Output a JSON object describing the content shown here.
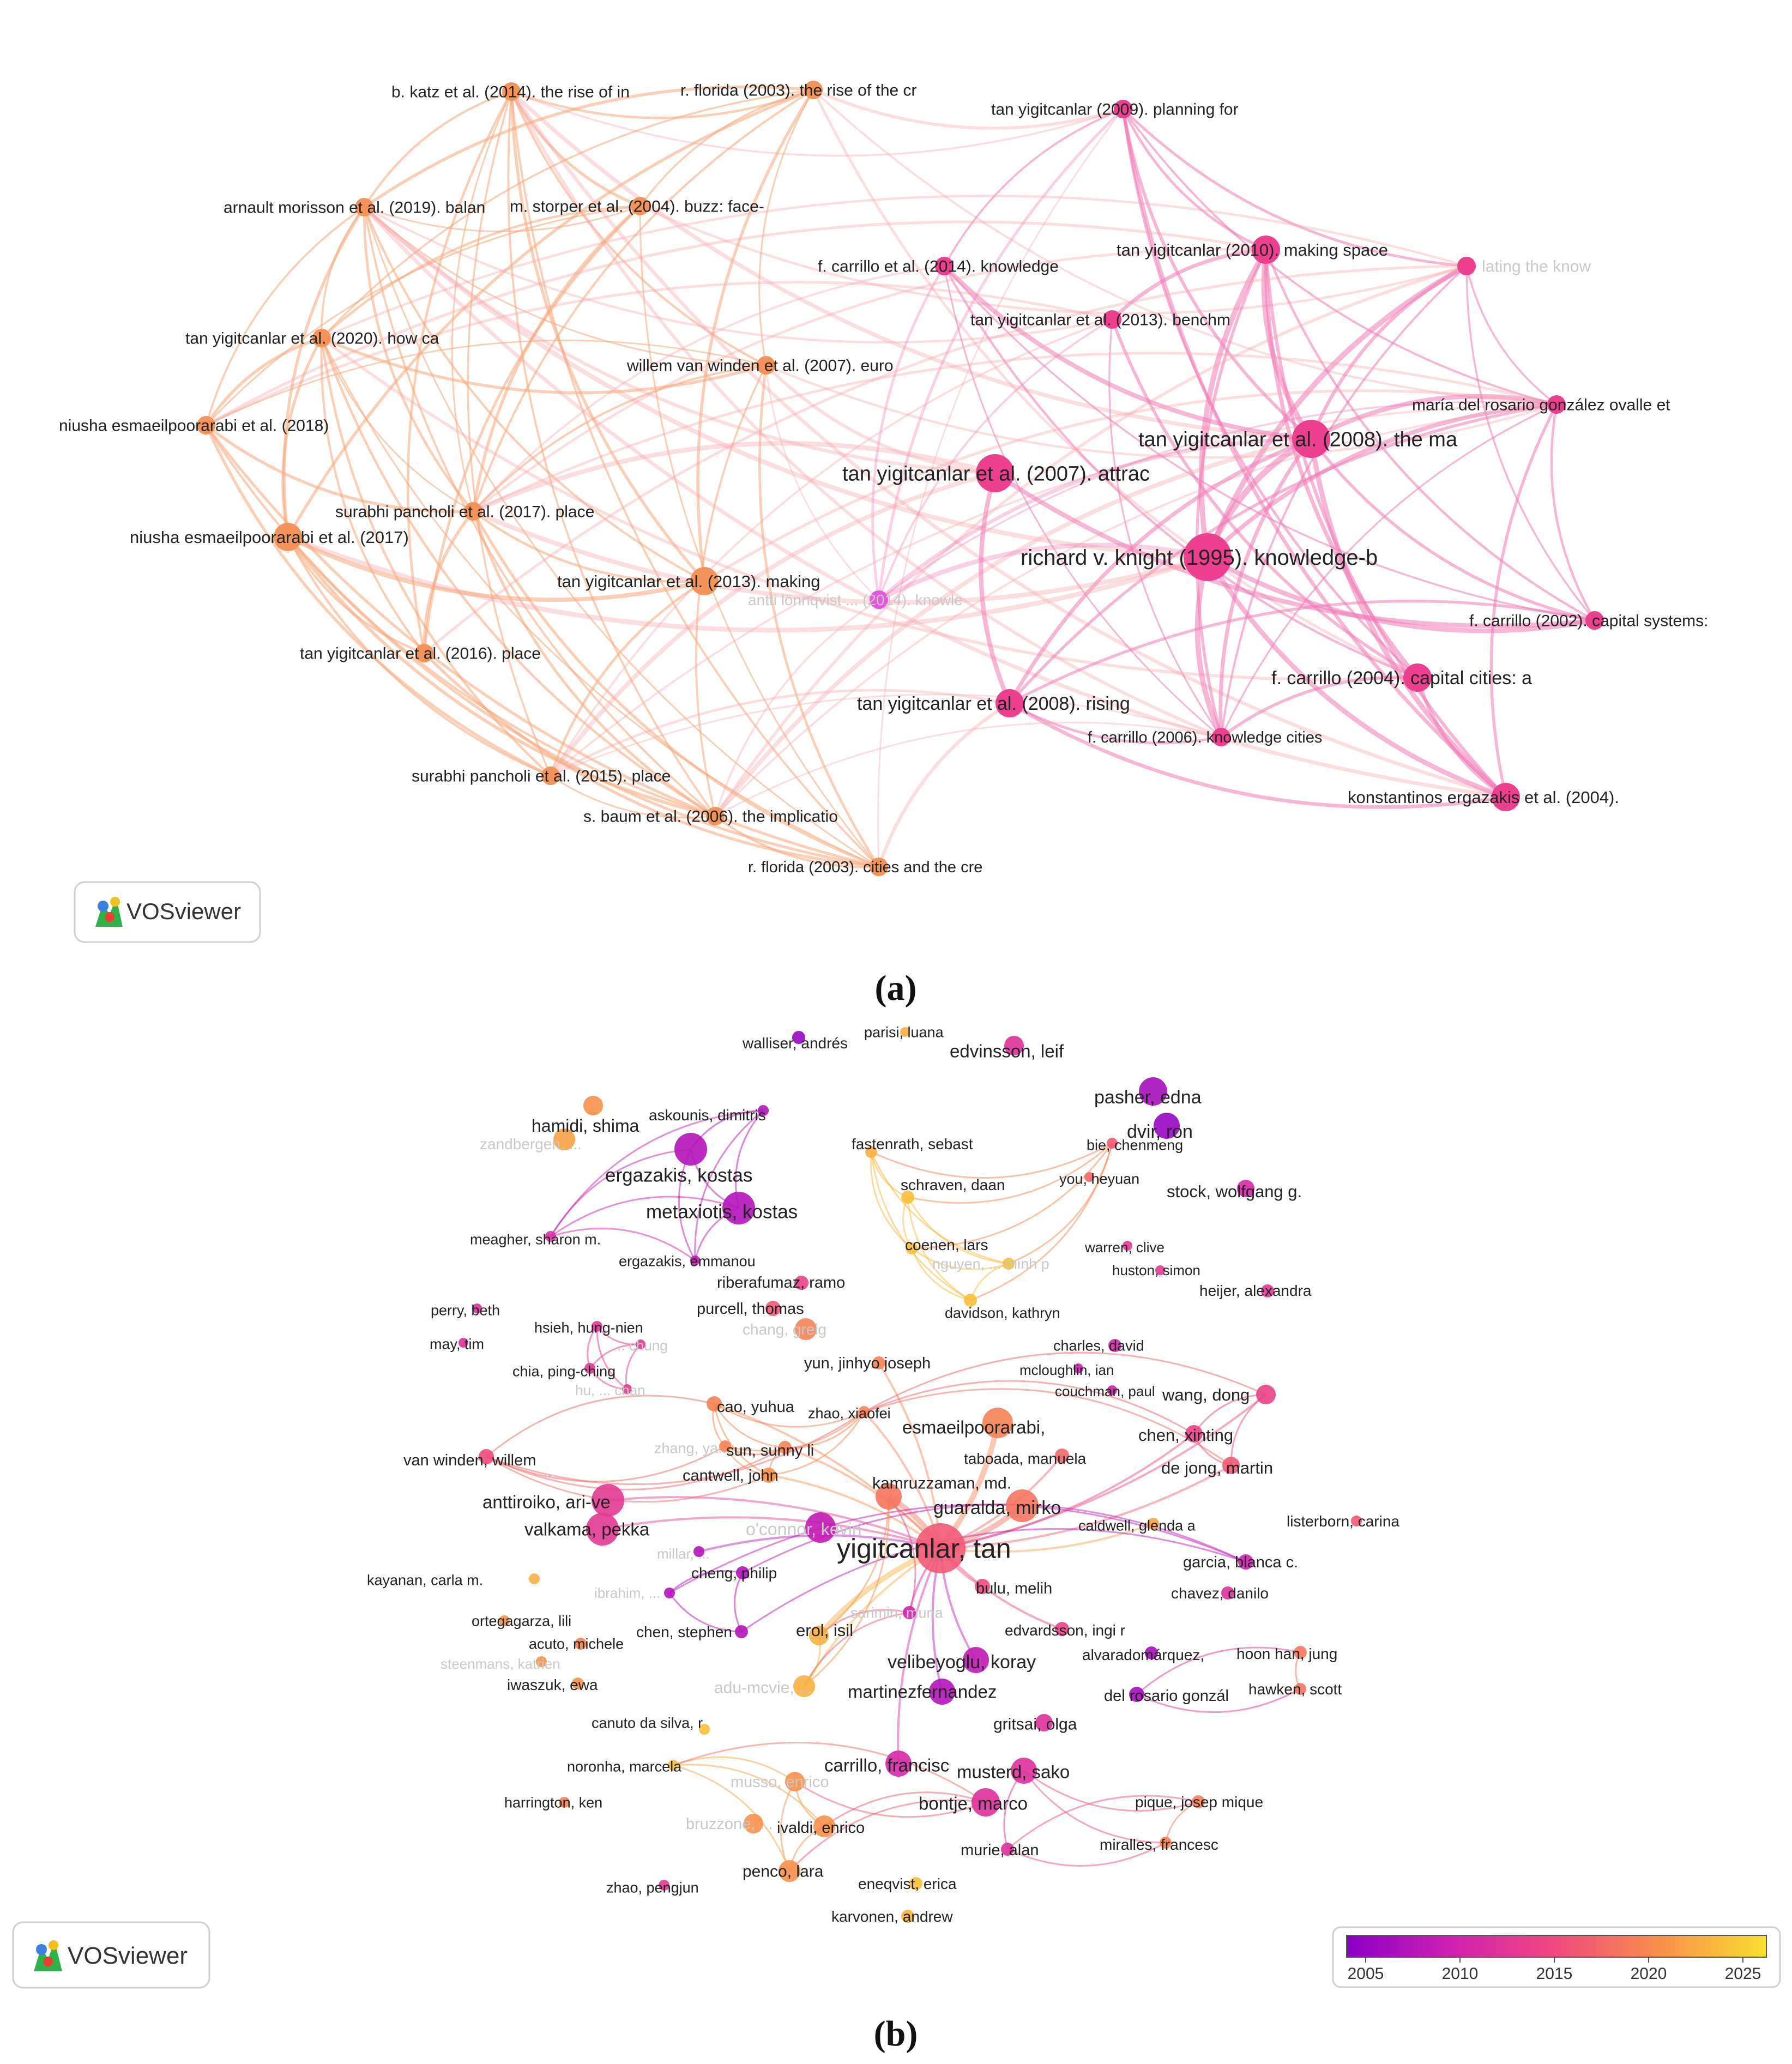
{
  "panel_a": {
    "caption": "(a)",
    "logo_text": "VOSviewer",
    "colors": {
      "cluster_orange": "#f4945a",
      "cluster_pink": "#ec3f8f",
      "cluster_magenta": "#e455e0"
    },
    "nodes": [
      {
        "id": "a1",
        "label": "b. katz et al. (2014). the rise of in",
        "cluster": "orange",
        "weight": 1
      },
      {
        "id": "a2",
        "label": "r. florida (2003). the rise of the cr",
        "cluster": "orange",
        "weight": 1
      },
      {
        "id": "a3",
        "label": "tan yigitcanlar (2009). planning for",
        "cluster": "pink",
        "weight": 1
      },
      {
        "id": "a4",
        "label": "arnault morisson et al. (2019). balan",
        "cluster": "orange",
        "weight": 1
      },
      {
        "id": "a5",
        "label": "m. storper et al. (2004). buzz: face-",
        "cluster": "orange",
        "weight": 1
      },
      {
        "id": "a6",
        "label": "f. carrillo et al. (2014). knowledge",
        "cluster": "pink",
        "weight": 1
      },
      {
        "id": "a7",
        "label": "tan yigitcanlar (2010). making space",
        "cluster": "pink",
        "weight": 2
      },
      {
        "id": "a8",
        "label": "lating the know",
        "cluster": "pink",
        "weight": 1,
        "faint": true
      },
      {
        "id": "a9",
        "label": "tan yigitcanlar et al. (2013). benchm",
        "cluster": "pink",
        "weight": 1
      },
      {
        "id": "a10",
        "label": "tan yigitcanlar et al. (2020). how ca",
        "cluster": "orange",
        "weight": 1
      },
      {
        "id": "a11",
        "label": "willem van winden et al. (2007). euro",
        "cluster": "orange",
        "weight": 1
      },
      {
        "id": "a12",
        "label": "maría del rosario gonzález ovalle et",
        "cluster": "pink",
        "weight": 1
      },
      {
        "id": "a13",
        "label": "niusha esmaeilpoorarabi et al. (2018)",
        "cluster": "orange",
        "weight": 1
      },
      {
        "id": "a14",
        "label": "tan yigitcanlar et al. (2008). the ma",
        "cluster": "pink",
        "weight": 3
      },
      {
        "id": "a15",
        "label": "tan yigitcanlar et al. (2007). attrac",
        "cluster": "pink",
        "weight": 3
      },
      {
        "id": "a16",
        "label": "surabhi pancholi et al. (2017). place",
        "cluster": "orange",
        "weight": 1
      },
      {
        "id": "a17",
        "label": "niusha esmaeilpoorarabi et al. (2017)",
        "cluster": "orange",
        "weight": 2
      },
      {
        "id": "a18",
        "label": "richard v. knight (1995). knowledge-b",
        "cluster": "pink",
        "weight": 4
      },
      {
        "id": "a19",
        "label": "tan yigitcanlar et al. (2013). making",
        "cluster": "orange",
        "weight": 2
      },
      {
        "id": "a20",
        "label": "antti lönnqvist ... (2014). knowle",
        "cluster": "magenta",
        "weight": 1,
        "faint": true
      },
      {
        "id": "a21",
        "label": "f. carrillo (2002). capital systems:",
        "cluster": "pink",
        "weight": 1
      },
      {
        "id": "a22",
        "label": "tan yigitcanlar et al. (2016). place",
        "cluster": "orange",
        "weight": 1
      },
      {
        "id": "a23",
        "label": "f. carrillo (2004). capital cities: a",
        "cluster": "pink",
        "weight": 2
      },
      {
        "id": "a24",
        "label": "tan yigitcanlar et al. (2008). rising",
        "cluster": "pink",
        "weight": 2
      },
      {
        "id": "a25",
        "label": "f. carrillo (2006). knowledge cities",
        "cluster": "pink",
        "weight": 1
      },
      {
        "id": "a26",
        "label": "surabhi pancholi et al. (2015). place",
        "cluster": "orange",
        "weight": 1
      },
      {
        "id": "a27",
        "label": "s. baum et al. (2006). the implicatio",
        "cluster": "orange",
        "weight": 1
      },
      {
        "id": "a28",
        "label": "konstantinos ergazakis et al. (2004).",
        "cluster": "pink",
        "weight": 2
      },
      {
        "id": "a29",
        "label": "r. florida (2003). cities and the cre",
        "cluster": "orange",
        "weight": 1
      }
    ]
  },
  "panel_b": {
    "caption": "(b)",
    "logo_text": "VOSviewer",
    "legend": {
      "ticks": [
        "2005",
        "2010",
        "2015",
        "2020",
        "2025"
      ],
      "colors": [
        "#8a00c8",
        "#d020b0",
        "#f04a7e",
        "#f8904a",
        "#f8e030"
      ]
    },
    "nodes": [
      {
        "label": "walliser, andrés",
        "year": 2006
      },
      {
        "label": "parisi, luana",
        "year": 2022
      },
      {
        "label": "edvinsson, leif",
        "year": 2012
      },
      {
        "label": "pasher, edna",
        "year": 2007
      },
      {
        "label": "dvir, ron",
        "year": 2006
      },
      {
        "label": "askounis, dimitris",
        "year": 2008
      },
      {
        "label": "hamidi, shima",
        "year": 2020
      },
      {
        "label": "zandbergen, ...",
        "year": 2021,
        "faint": true
      },
      {
        "label": "ergazakis, kostas",
        "year": 2008
      },
      {
        "label": "metaxiotis, kostas",
        "year": 2008
      },
      {
        "label": "fastenrath, sebast",
        "year": 2022
      },
      {
        "label": "bie, chenmeng",
        "year": 2016
      },
      {
        "label": "you, heyuan",
        "year": 2017
      },
      {
        "label": "schraven, daan",
        "year": 2023
      },
      {
        "label": "stock, wolfgang g.",
        "year": 2011
      },
      {
        "label": "meagher, sharon m.",
        "year": 2012
      },
      {
        "label": "ergazakis, emmanou",
        "year": 2009
      },
      {
        "label": "coenen, lars",
        "year": 2023
      },
      {
        "label": "warren, clive",
        "year": 2013
      },
      {
        "label": "nguyen, ... minh p",
        "year": 2023,
        "faint": true
      },
      {
        "label": "huston, simon",
        "year": 2013
      },
      {
        "label": "heijer, alexandra",
        "year": 2013
      },
      {
        "label": "ribera​fumaz, ramo",
        "year": 2014
      },
      {
        "label": "perry, beth",
        "year": 2012
      },
      {
        "label": "purcell, thomas",
        "year": 2016
      },
      {
        "label": "davidson, kathryn",
        "year": 2023
      },
      {
        "label": "hsieh, hung-nien",
        "year": 2013
      },
      {
        "label": "... chung",
        "year": 2013,
        "faint": true
      },
      {
        "label": "chang, greig",
        "year": 2019,
        "faint": true
      },
      {
        "label": "may, tim",
        "year": 2012
      },
      {
        "label": "charles, david",
        "year": 2011
      },
      {
        "label": "yun, jinhyo joseph",
        "year": 2019
      },
      {
        "label": "mcloughlin, ian",
        "year": 2010
      },
      {
        "label": "chia, ping-ching",
        "year": 2013
      },
      {
        "label": "hu, ... chan",
        "year": 2013,
        "faint": true
      },
      {
        "label": "couchman, paul",
        "year": 2010
      },
      {
        "label": "wang, dong",
        "year": 2014
      },
      {
        "label": "cao, yuhua",
        "year": 2019
      },
      {
        "label": "zhao, xiaofei",
        "year": 2019
      },
      {
        "label": "esmaeilpoorarabi,",
        "year": 2019
      },
      {
        "label": "chen, xinting",
        "year": 2014
      },
      {
        "label": "van winden, willem",
        "year": 2015
      },
      {
        "label": "zhang, ya...",
        "year": 2019,
        "faint": true
      },
      {
        "label": "sun, sunny li",
        "year": 2019
      },
      {
        "label": "taboada, manuela",
        "year": 2017
      },
      {
        "label": "de jong, martin",
        "year": 2016
      },
      {
        "label": "cantwell, john",
        "year": 2020
      },
      {
        "label": "kamruzzaman, md.",
        "year": 2018
      },
      {
        "label": "anttiroiko, ari-ve",
        "year": 2013
      },
      {
        "label": "guaralda, mirko",
        "year": 2018
      },
      {
        "label": "caldwell, glenda a",
        "year": 2021
      },
      {
        "label": "listerborn, carina",
        "year": 2016
      },
      {
        "label": "valkama, pekka",
        "year": 2013
      },
      {
        "label": "o'connor, kevin",
        "year": 2009,
        "faint": true
      },
      {
        "label": "yigitcanlar, tan",
        "year": 2016
      },
      {
        "label": "millar, ...",
        "year": 2008,
        "faint": true
      },
      {
        "label": "garcia, blanca c.",
        "year": 2010
      },
      {
        "label": "kayanan, carla m.",
        "year": 2022
      },
      {
        "label": "cheng, philip",
        "year": 2008
      },
      {
        "label": "bulu, melih",
        "year": 2015
      },
      {
        "label": "ibrahim, ...",
        "year": 2008,
        "faint": true
      },
      {
        "label": "chavez, danilo",
        "year": 2012
      },
      {
        "label": "sarimin, muna",
        "year": 2010,
        "faint": true
      },
      {
        "label": "ortega​garza, lili",
        "year": 2020
      },
      {
        "label": "edvardsson, ingi r",
        "year": 2014
      },
      {
        "label": "erol, isil",
        "year": 2022
      },
      {
        "label": "chen, stephen",
        "year": 2008
      },
      {
        "label": "acuto, michele",
        "year": 2019
      },
      {
        "label": "velibeyoglu, koray",
        "year": 2009
      },
      {
        "label": "alvarado​márquez,",
        "year": 2007
      },
      {
        "label": "hoon han, jung",
        "year": 2018
      },
      {
        "label": "steenmans, katrien",
        "year": 2020,
        "faint": true
      },
      {
        "label": "iwaszuk, ewa",
        "year": 2020
      },
      {
        "label": "adu-mcvie, ...",
        "year": 2022,
        "faint": true
      },
      {
        "label": "martinez​fernandez",
        "year": 2008
      },
      {
        "label": "del rosario gonzál",
        "year": 2007
      },
      {
        "label": "hawken, scott",
        "year": 2018
      },
      {
        "label": "canuto da silva, r",
        "year": 2023
      },
      {
        "label": "gritsai, olga",
        "year": 2012
      },
      {
        "label": "noronha, marcela",
        "year": 2023
      },
      {
        "label": "carrillo, francisc",
        "year": 2011
      },
      {
        "label": "musso, enrico",
        "year": 2020,
        "faint": true
      },
      {
        "label": "musterd, sako",
        "year": 2012
      },
      {
        "label": "harrington, ken",
        "year": 2019
      },
      {
        "label": "bontje, marco",
        "year": 2012
      },
      {
        "label": "pique, josep mique",
        "year": 2019
      },
      {
        "label": "bruzzone, ...",
        "year": 2020,
        "faint": true
      },
      {
        "label": "ivaldi, enrico",
        "year": 2020
      },
      {
        "label": "murie, alan",
        "year": 2012
      },
      {
        "label": "miralles, francesc",
        "year": 2019
      },
      {
        "label": "penco, lara",
        "year": 2020
      },
      {
        "label": "eneqvist, erica",
        "year": 2023
      },
      {
        "label": "zhao, pengjun",
        "year": 2013
      },
      {
        "label": "karvonen, andrew",
        "year": 2022
      }
    ]
  }
}
